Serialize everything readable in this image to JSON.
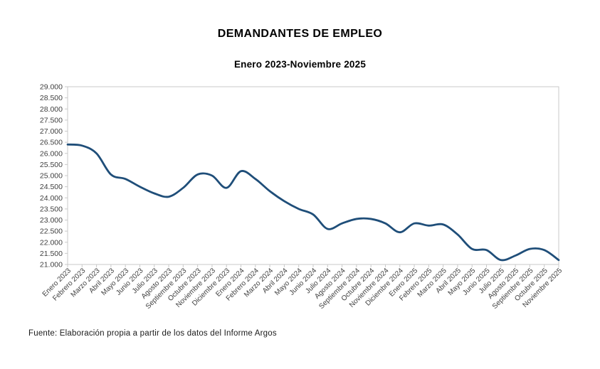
{
  "header": {
    "title": "DEMANDANTES DE EMPLEO",
    "subtitle": "Enero 2023-Noviembre 2025"
  },
  "footer": {
    "source": "Fuente: Elaboración propia a partir de los datos del Informe Argos"
  },
  "chart_data": {
    "type": "line",
    "title": "DEMANDANTES DE EMPLEO",
    "subtitle": "Enero 2023-Noviembre 2025",
    "smooth": true,
    "grid": false,
    "legend": "none",
    "line_color": "#1f4e79",
    "axis_color": "#c9c9c9",
    "label_color": "#404040",
    "ylim": [
      21000,
      29000
    ],
    "y_tick_step": 500,
    "y_tick_labels": [
      "21.000",
      "21.500",
      "22.000",
      "22.500",
      "23.000",
      "23.500",
      "24.000",
      "24.500",
      "25.000",
      "25.500",
      "26.000",
      "26.500",
      "27.000",
      "27.500",
      "28.000",
      "28.500",
      "29.000"
    ],
    "categories": [
      "Enero 2023",
      "Febrero 2023",
      "Marzo 2023",
      "Abril 2023",
      "Mayo 2023",
      "Junio 2023",
      "Julio 2023",
      "Agosto 2023",
      "Septiembre 2023",
      "Octubre 2023",
      "Noviembre 2023",
      "Diciembre 2023",
      "Enero 2024",
      "Febrero 2024",
      "Marzo 2024",
      "Abril 2024",
      "Mayo 2024",
      "Junio 2024",
      "Julio 2024",
      "Agosto 2024",
      "Septiembre 2024",
      "Octubre 2024",
      "Noviembre 2024",
      "Diciembre 2024",
      "Enero 2025",
      "Febrero 2025",
      "Marzo 2025",
      "Abril 2025",
      "Mayo 2025",
      "Junio 2025",
      "Julio 2025",
      "Agosto 2025",
      "Septiembre 2025",
      "Octubre 2025",
      "Noviembre 2025"
    ],
    "values": [
      26400,
      26350,
      26000,
      25050,
      24850,
      24500,
      24200,
      24050,
      24450,
      25050,
      25000,
      24450,
      25200,
      24850,
      24300,
      23850,
      23500,
      23250,
      22600,
      22850,
      23050,
      23050,
      22850,
      22450,
      22850,
      22750,
      22800,
      22350,
      21700,
      21650,
      21200,
      21400,
      21700,
      21650,
      21200
    ]
  }
}
